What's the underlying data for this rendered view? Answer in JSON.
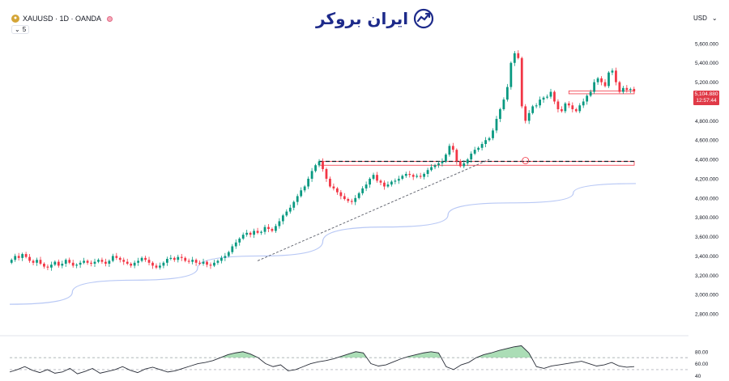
{
  "header": {
    "symbol": "XAUUSD · 1D · OANDA",
    "symbol_icon": "gold-icon",
    "indicator_count": "5"
  },
  "logo": {
    "text": "ایران بروکر",
    "icon": "chart-trend-icon"
  },
  "currency": "USD",
  "price_tag": {
    "price": "5,104.880",
    "countdown": "12:57:44",
    "color": "#e03a47"
  },
  "colors": {
    "up": "#089981",
    "down": "#f23645",
    "ma": "#b8c8f5",
    "osc_fill": "#8fd19e"
  },
  "chart_data": [
    {
      "type": "candlestick",
      "title": "",
      "xlabel": "",
      "ylabel": "",
      "ylim": [
        2700,
        5800
      ],
      "yticks": [
        2800,
        3000,
        3200,
        3400,
        3600,
        3800,
        4000,
        4200,
        4400,
        4600,
        4800,
        5000,
        5200,
        5400,
        5600
      ],
      "ytick_labels": [
        "2,800.000",
        "3,000.000",
        "3,200.000",
        "3,400.000",
        "3,600.000",
        "3,800.000",
        "4,000.000",
        "4,200.000",
        "4,400.000",
        "4,600.000",
        "4,800.000",
        "5,000.000",
        "5,200.000",
        "5,400.000",
        "5,600.000"
      ],
      "close": [
        3360,
        3400,
        3380,
        3420,
        3390,
        3350,
        3330,
        3360,
        3320,
        3290,
        3280,
        3310,
        3340,
        3300,
        3320,
        3360,
        3330,
        3300,
        3310,
        3330,
        3350,
        3330,
        3320,
        3340,
        3360,
        3340,
        3320,
        3350,
        3400,
        3380,
        3360,
        3340,
        3320,
        3300,
        3330,
        3350,
        3380,
        3360,
        3330,
        3300,
        3280,
        3300,
        3330,
        3370,
        3380,
        3360,
        3390,
        3380,
        3350,
        3340,
        3360,
        3330,
        3320,
        3340,
        3310,
        3300,
        3330,
        3350,
        3380,
        3400,
        3440,
        3500,
        3540,
        3580,
        3620,
        3640,
        3620,
        3660,
        3640,
        3650,
        3700,
        3680,
        3660,
        3710,
        3760,
        3820,
        3860,
        3900,
        3960,
        4020,
        4080,
        4120,
        4200,
        4280,
        4340,
        4380,
        4300,
        4200,
        4120,
        4100,
        4060,
        4020,
        3990,
        3970,
        3960,
        4000,
        4050,
        4100,
        4140,
        4200,
        4240,
        4180,
        4160,
        4120,
        4140,
        4170,
        4180,
        4200,
        4230,
        4250,
        4240,
        4220,
        4230,
        4220,
        4250,
        4290,
        4320,
        4340,
        4360,
        4380,
        4450,
        4540,
        4500,
        4380,
        4330,
        4360,
        4400,
        4460,
        4500,
        4520,
        4560,
        4600,
        4620,
        4700,
        4820,
        4920,
        5020,
        5150,
        5400,
        5500,
        5450,
        4950,
        4800,
        4880,
        4950,
        4960,
        5020,
        5040,
        5050,
        5100,
        5000,
        4920,
        4900,
        4980,
        4960,
        4920,
        4900,
        4960,
        5000,
        5060,
        5100,
        5200,
        5240,
        5200,
        5160,
        5300,
        5320,
        5200,
        5100,
        5140,
        5120,
        5130,
        5104.88
      ],
      "annotations": {
        "resistance_level": 4380,
        "support_box": [
          4340,
          4380
        ],
        "right_box": [
          5080,
          5110
        ],
        "trendline": {
          "from_index": 68,
          "from_value": 3350,
          "to_index": 132,
          "to_value": 4400
        },
        "moving_average": [
          2900,
          3150,
          3400,
          3700,
          3950,
          4150
        ]
      }
    },
    {
      "type": "line",
      "title": "",
      "ylim": [
        35,
        100
      ],
      "yticks": [
        40,
        60,
        80
      ],
      "ytick_labels": [
        "40",
        "60.00",
        "80.00"
      ],
      "levels": [
        70,
        50
      ],
      "values": [
        46,
        50,
        55,
        49,
        45,
        50,
        44,
        46,
        52,
        43,
        47,
        52,
        44,
        47,
        50,
        55,
        49,
        45,
        51,
        54,
        50,
        46,
        48,
        52,
        56,
        60,
        62,
        65,
        70,
        75,
        78,
        80,
        76,
        70,
        60,
        55,
        58,
        48,
        50,
        55,
        60,
        63,
        65,
        68,
        72,
        76,
        80,
        78,
        60,
        56,
        58,
        63,
        68,
        72,
        75,
        78,
        80,
        78,
        55,
        50,
        58,
        62,
        70,
        75,
        78,
        82,
        85,
        88,
        90,
        78,
        55,
        52,
        56,
        58,
        60,
        62,
        64,
        60,
        56,
        58,
        62,
        56,
        54,
        55
      ]
    }
  ]
}
